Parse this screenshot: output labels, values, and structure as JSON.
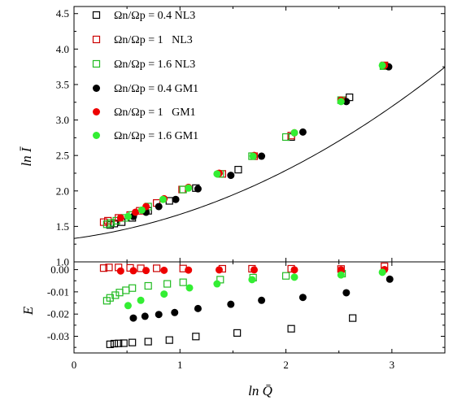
{
  "chart_data": [
    {
      "panel": "top",
      "type": "scatter",
      "ylabel": "ln Ī",
      "xlim": [
        0,
        3.5
      ],
      "ylim": [
        1.0,
        4.6
      ],
      "yticks": [
        "1.0",
        "1.5",
        "2.0",
        "2.5",
        "3.0",
        "3.5",
        "4.0",
        "4.5"
      ],
      "ytick_values": [
        1.0,
        1.5,
        2.0,
        2.5,
        3.0,
        3.5,
        4.0,
        4.5
      ],
      "fit_curve": {
        "a": 1.33,
        "b": 0.2,
        "c": 0.14
      },
      "legend_position": "top-left",
      "series": [
        {
          "name": "Ωn/Ωp = 0.4 NL3",
          "marker": "open-square",
          "color": "#000000",
          "x": [
            0.34,
            0.38,
            0.45,
            0.55,
            0.7,
            0.9,
            1.15,
            1.55,
            2.05,
            2.6
          ],
          "y": [
            1.52,
            1.54,
            1.56,
            1.62,
            1.72,
            1.86,
            2.04,
            2.3,
            2.76,
            3.32
          ]
        },
        {
          "name": "Ωn/Ωp = 1   NL3",
          "marker": "open-square",
          "color": "#cc0000",
          "x": [
            0.28,
            0.32,
            0.42,
            0.53,
            0.62,
            0.78,
            1.02,
            1.4,
            1.7,
            2.05,
            2.53,
            2.93
          ],
          "y": [
            1.56,
            1.58,
            1.62,
            1.66,
            1.72,
            1.83,
            2.02,
            2.24,
            2.49,
            2.78,
            3.28,
            3.77
          ]
        },
        {
          "name": "Ωn/Ωp = 1.6 NL3",
          "marker": "open-square",
          "color": "#22bb22",
          "x": [
            0.31,
            0.35,
            0.4,
            0.48,
            0.55,
            0.7,
            1.03,
            1.38,
            1.68,
            2.0,
            2.52,
            2.92
          ],
          "y": [
            1.53,
            1.55,
            1.58,
            1.62,
            1.66,
            1.78,
            2.02,
            2.24,
            2.49,
            2.76,
            3.28,
            3.76
          ]
        },
        {
          "name": "Ωn/Ωp = 0.4 GM1",
          "marker": "filled-circle",
          "color": "#000000",
          "x": [
            0.56,
            0.68,
            0.8,
            0.96,
            1.17,
            1.48,
            1.77,
            2.16,
            2.57,
            2.97
          ],
          "y": [
            1.64,
            1.7,
            1.78,
            1.88,
            2.03,
            2.22,
            2.49,
            2.83,
            3.26,
            3.75
          ]
        },
        {
          "name": "Ωn/Ωp = 1   GM1",
          "marker": "filled-circle",
          "color": "#ee0000",
          "x": [
            0.44,
            0.58,
            0.68,
            0.85,
            1.08,
            1.37,
            1.7,
            2.08,
            2.52,
            2.93
          ],
          "y": [
            1.62,
            1.7,
            1.78,
            1.89,
            2.05,
            2.25,
            2.5,
            2.82,
            3.28,
            3.77
          ]
        },
        {
          "name": "Ωn/Ωp = 1.6 GM1",
          "marker": "filled-circle",
          "color": "#33ee33",
          "x": [
            0.51,
            0.64,
            0.84,
            1.08,
            1.35,
            1.69,
            2.08,
            2.52,
            2.91
          ],
          "y": [
            1.64,
            1.73,
            1.88,
            2.04,
            2.24,
            2.49,
            2.82,
            3.26,
            3.77
          ]
        }
      ]
    },
    {
      "panel": "bottom",
      "type": "scatter",
      "xlabel": "ln Q̄",
      "ylabel": "E",
      "xlim": [
        0,
        3.5
      ],
      "ylim": [
        -0.0375,
        0.0035
      ],
      "xticks": [
        "0",
        "1",
        "2",
        "3"
      ],
      "xtick_values": [
        0,
        1,
        2,
        3
      ],
      "yticks": [
        "0.00",
        "-0.01",
        "-0.02",
        "-0.03"
      ],
      "ytick_values": [
        0.0,
        -0.01,
        -0.02,
        -0.03
      ],
      "series": [
        {
          "name": "Ωn/Ωp = 0.4 NL3",
          "marker": "open-square",
          "color": "#000000",
          "x": [
            0.34,
            0.38,
            0.42,
            0.47,
            0.55,
            0.7,
            0.9,
            1.15,
            1.54,
            2.05,
            2.63
          ],
          "y": [
            -0.0336,
            -0.0333,
            -0.0332,
            -0.0331,
            -0.0328,
            -0.0324,
            -0.0317,
            -0.0301,
            -0.0285,
            -0.0266,
            -0.0218
          ]
        },
        {
          "name": "Ωn/Ωp = 1   NL3",
          "marker": "open-square",
          "color": "#cc0000",
          "x": [
            0.28,
            0.33,
            0.42,
            0.53,
            0.63,
            0.78,
            1.03,
            1.4,
            1.68,
            2.05,
            2.52,
            2.93
          ],
          "y": [
            0.0007,
            0.001,
            0.001,
            0.0008,
            0.0006,
            0.0006,
            0.0005,
            0.0004,
            0.0004,
            0.0004,
            0.0003,
            0.0015
          ]
        },
        {
          "name": "Ωn/Ωp = 1.6 NL3",
          "marker": "open-square",
          "color": "#22bb22",
          "x": [
            0.31,
            0.34,
            0.39,
            0.43,
            0.49,
            0.55,
            0.7,
            0.88,
            1.03,
            1.38,
            1.69,
            2.0,
            2.53
          ],
          "y": [
            -0.014,
            -0.0127,
            -0.0115,
            -0.0103,
            -0.0093,
            -0.0083,
            -0.0073,
            -0.0064,
            -0.0057,
            -0.0045,
            -0.0036,
            -0.0028,
            -0.0018
          ]
        },
        {
          "name": "Ωn/Ωp = 0.4 GM1",
          "marker": "filled-circle",
          "color": "#000000",
          "x": [
            0.56,
            0.67,
            0.8,
            0.95,
            1.17,
            1.48,
            1.77,
            2.16,
            2.57,
            2.98
          ],
          "y": [
            -0.0218,
            -0.021,
            -0.0202,
            -0.0193,
            -0.0175,
            -0.0156,
            -0.0138,
            -0.0125,
            -0.0104,
            -0.0043
          ]
        },
        {
          "name": "Ωn/Ωp = 1   GM1",
          "marker": "filled-circle",
          "color": "#ee0000",
          "x": [
            0.44,
            0.56,
            0.68,
            0.85,
            1.08,
            1.37,
            1.7,
            2.08,
            2.52,
            2.93
          ],
          "y": [
            -0.0006,
            -0.0005,
            -0.0004,
            -0.0003,
            -0.0002,
            -0.0001,
            -0.0001,
            -0.0001,
            -0.0001,
            0.0
          ]
        },
        {
          "name": "Ωn/Ωp = 1.6 GM1",
          "marker": "filled-circle",
          "color": "#33ee33",
          "x": [
            0.51,
            0.63,
            0.85,
            1.09,
            1.35,
            1.68,
            2.08,
            2.52,
            2.91
          ],
          "y": [
            -0.0162,
            -0.0138,
            -0.011,
            -0.0082,
            -0.0064,
            -0.0045,
            -0.0034,
            -0.0024,
            -0.0012
          ]
        }
      ]
    }
  ]
}
